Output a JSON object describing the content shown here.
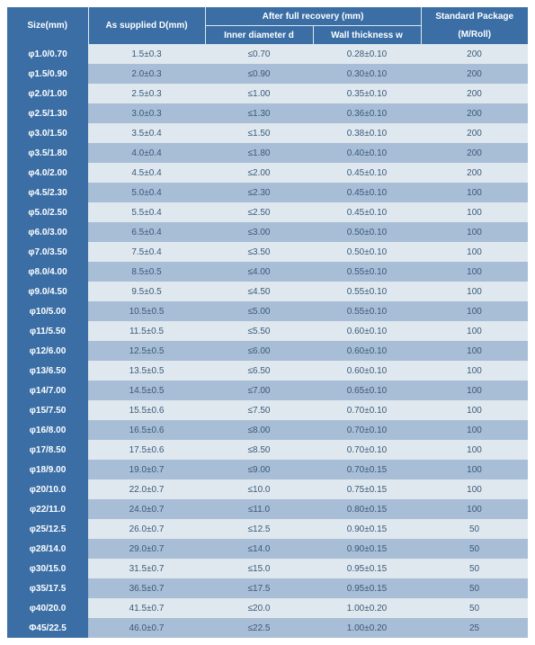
{
  "header": {
    "size": "Size(mm)",
    "supplied": "As supplied D(mm)",
    "recovery": "After full recovery (mm)",
    "inner": "Inner diameter d",
    "wall": "Wall thickness w",
    "package": "Standard Package",
    "roll": "(M/Roll)"
  },
  "rows": [
    {
      "size": "φ1.0/0.70",
      "supplied": "1.5±0.3",
      "inner": "≤0.70",
      "wall": "0.28±0.10",
      "pkg": "200",
      "shade": "light"
    },
    {
      "size": "φ1.5/0.90",
      "supplied": "2.0±0.3",
      "inner": "≤0.90",
      "wall": "0.30±0.10",
      "pkg": "200",
      "shade": "dark"
    },
    {
      "size": "φ2.0/1.00",
      "supplied": "2.5±0.3",
      "inner": "≤1.00",
      "wall": "0.35±0.10",
      "pkg": "200",
      "shade": "light"
    },
    {
      "size": "φ2.5/1.30",
      "supplied": "3.0±0.3",
      "inner": "≤1.30",
      "wall": "0.36±0.10",
      "pkg": "200",
      "shade": "dark"
    },
    {
      "size": "φ3.0/1.50",
      "supplied": "3.5±0.4",
      "inner": "≤1.50",
      "wall": "0.38±0.10",
      "pkg": "200",
      "shade": "light"
    },
    {
      "size": "φ3.5/1.80",
      "supplied": "4.0±0.4",
      "inner": "≤1.80",
      "wall": "0.40±0.10",
      "pkg": "200",
      "shade": "dark"
    },
    {
      "size": "φ4.0/2.00",
      "supplied": "4.5±0.4",
      "inner": "≤2.00",
      "wall": "0.45±0.10",
      "pkg": "200",
      "shade": "light"
    },
    {
      "size": "φ4.5/2.30",
      "supplied": "5.0±0.4",
      "inner": "≤2.30",
      "wall": "0.45±0.10",
      "pkg": "100",
      "shade": "dark"
    },
    {
      "size": "φ5.0/2.50",
      "supplied": "5.5±0.4",
      "inner": "≤2.50",
      "wall": "0.45±0.10",
      "pkg": "100",
      "shade": "light"
    },
    {
      "size": "φ6.0/3.00",
      "supplied": "6.5±0.4",
      "inner": "≤3.00",
      "wall": "0.50±0.10",
      "pkg": "100",
      "shade": "dark"
    },
    {
      "size": "φ7.0/3.50",
      "supplied": "7.5±0.4",
      "inner": "≤3.50",
      "wall": "0.50±0.10",
      "pkg": "100",
      "shade": "light"
    },
    {
      "size": "φ8.0/4.00",
      "supplied": "8.5±0.5",
      "inner": "≤4.00",
      "wall": "0.55±0.10",
      "pkg": "100",
      "shade": "dark"
    },
    {
      "size": "φ9.0/4.50",
      "supplied": "9.5±0.5",
      "inner": "≤4.50",
      "wall": "0.55±0.10",
      "pkg": "100",
      "shade": "light"
    },
    {
      "size": "φ10/5.00",
      "supplied": "10.5±0.5",
      "inner": "≤5.00",
      "wall": "0.55±0.10",
      "pkg": "100",
      "shade": "dark"
    },
    {
      "size": "φ11/5.50",
      "supplied": "11.5±0.5",
      "inner": "≤5.50",
      "wall": "0.60±0.10",
      "pkg": "100",
      "shade": "light"
    },
    {
      "size": "φ12/6.00",
      "supplied": "12.5±0.5",
      "inner": "≤6.00",
      "wall": "0.60±0.10",
      "pkg": "100",
      "shade": "dark"
    },
    {
      "size": "φ13/6.50",
      "supplied": "13.5±0.5",
      "inner": "≤6.50",
      "wall": "0.60±0.10",
      "pkg": "100",
      "shade": "light"
    },
    {
      "size": "φ14/7.00",
      "supplied": "14.5±0.5",
      "inner": "≤7.00",
      "wall": "0.65±0.10",
      "pkg": "100",
      "shade": "dark"
    },
    {
      "size": "φ15/7.50",
      "supplied": "15.5±0.6",
      "inner": "≤7.50",
      "wall": "0.70±0.10",
      "pkg": "100",
      "shade": "light"
    },
    {
      "size": "φ16/8.00",
      "supplied": "16.5±0.6",
      "inner": "≤8.00",
      "wall": "0.70±0.10",
      "pkg": "100",
      "shade": "dark"
    },
    {
      "size": "φ17/8.50",
      "supplied": "17.5±0.6",
      "inner": "≤8.50",
      "wall": "0.70±0.10",
      "pkg": "100",
      "shade": "light"
    },
    {
      "size": "φ18/9.00",
      "supplied": "19.0±0.7",
      "inner": "≤9.00",
      "wall": "0.70±0.15",
      "pkg": "100",
      "shade": "dark"
    },
    {
      "size": "φ20/10.0",
      "supplied": "22.0±0.7",
      "inner": "≤10.0",
      "wall": "0.75±0.15",
      "pkg": "100",
      "shade": "light"
    },
    {
      "size": "φ22/11.0",
      "supplied": "24.0±0.7",
      "inner": "≤11.0",
      "wall": "0.80±0.15",
      "pkg": "100",
      "shade": "dark"
    },
    {
      "size": "φ25/12.5",
      "supplied": "26.0±0.7",
      "inner": "≤12.5",
      "wall": "0.90±0.15",
      "pkg": "50",
      "shade": "light"
    },
    {
      "size": "φ28/14.0",
      "supplied": "29.0±0.7",
      "inner": "≤14.0",
      "wall": "0.90±0.15",
      "pkg": "50",
      "shade": "dark"
    },
    {
      "size": "φ30/15.0",
      "supplied": "31.5±0.7",
      "inner": "≤15.0",
      "wall": "0.95±0.15",
      "pkg": "50",
      "shade": "light"
    },
    {
      "size": "φ35/17.5",
      "supplied": "36.5±0.7",
      "inner": "≤17.5",
      "wall": "0.95±0.15",
      "pkg": "50",
      "shade": "dark"
    },
    {
      "size": "φ40/20.0",
      "supplied": "41.5±0.7",
      "inner": "≤20.0",
      "wall": "1.00±0.20",
      "pkg": "50",
      "shade": "light"
    },
    {
      "size": "Φ45/22.5",
      "supplied": "46.0±0.7",
      "inner": "≤22.5",
      "wall": "1.00±0.20",
      "pkg": "25",
      "shade": "dark"
    }
  ]
}
